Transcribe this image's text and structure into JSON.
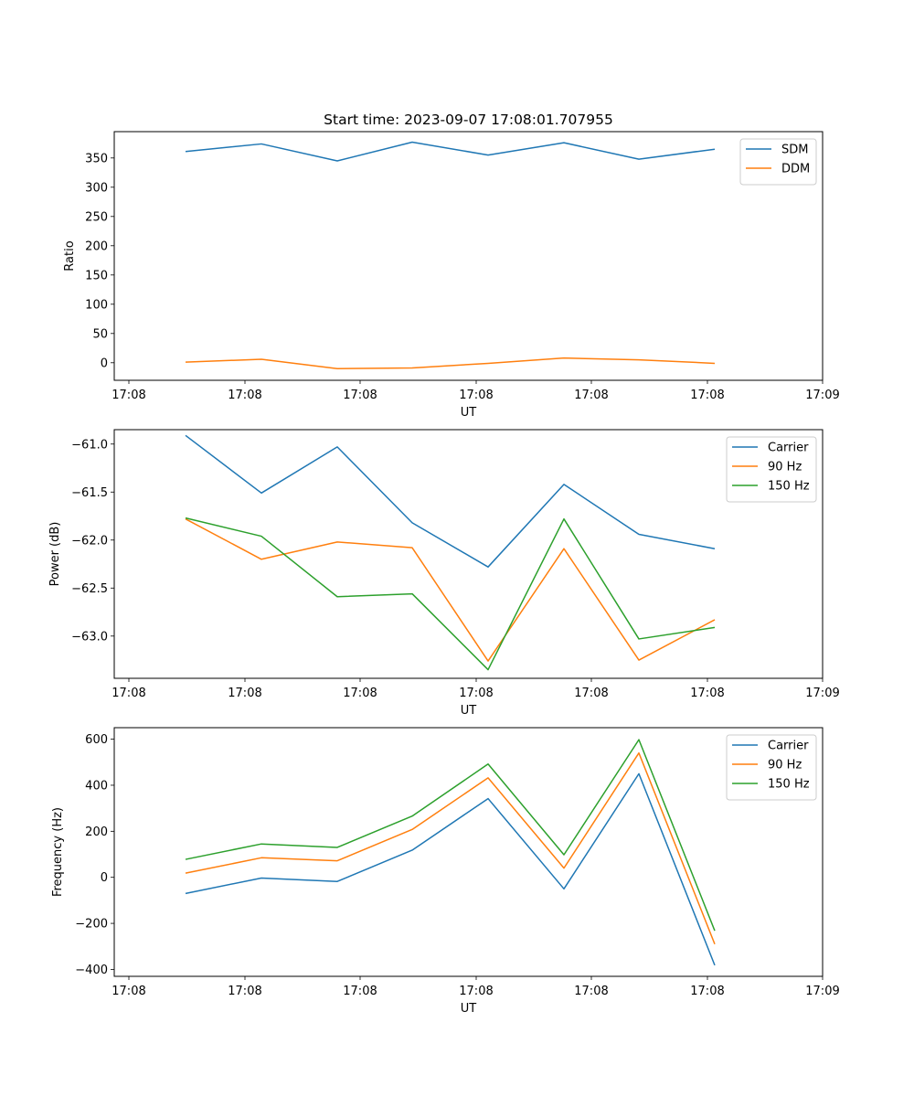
{
  "chart_data": [
    {
      "type": "line",
      "title": "Start time: 2023-09-07 17:08:01.707955",
      "xlabel": "UT",
      "ylabel": "Ratio",
      "x_ticks": [
        "17:08",
        "17:08",
        "17:08",
        "17:08",
        "17:08",
        "17:08",
        "17:09"
      ],
      "y_ticks": [
        0,
        50,
        100,
        150,
        200,
        250,
        300,
        350
      ],
      "ylim": [
        -30,
        395
      ],
      "legend": "top-right",
      "series": [
        {
          "name": "SDM",
          "color": "#1f77b4",
          "values": [
            361,
            374,
            345,
            377,
            355,
            376,
            348,
            365
          ]
        },
        {
          "name": "DDM",
          "color": "#ff7f0e",
          "values": [
            1,
            6,
            -10,
            -9,
            -1,
            8,
            5,
            -1
          ]
        }
      ]
    },
    {
      "type": "line",
      "title": "",
      "xlabel": "UT",
      "ylabel": "Power (dB)",
      "x_ticks": [
        "17:08",
        "17:08",
        "17:08",
        "17:08",
        "17:08",
        "17:08",
        "17:09"
      ],
      "y_ticks": [
        -61.0,
        -61.5,
        -62.0,
        -62.5,
        -63.0
      ],
      "ylim": [
        -63.44,
        -60.85
      ],
      "legend": "top-right",
      "series": [
        {
          "name": "Carrier",
          "color": "#1f77b4",
          "values": [
            -60.91,
            -61.51,
            -61.03,
            -61.82,
            -62.28,
            -61.42,
            -61.94,
            -62.09
          ]
        },
        {
          "name": "90 Hz",
          "color": "#ff7f0e",
          "values": [
            -61.78,
            -62.2,
            -62.02,
            -62.08,
            -63.26,
            -62.09,
            -63.25,
            -62.83
          ]
        },
        {
          "name": "150 Hz",
          "color": "#2ca02c",
          "values": [
            -61.77,
            -61.96,
            -62.59,
            -62.56,
            -63.35,
            -61.78,
            -63.03,
            -62.91
          ]
        }
      ]
    },
    {
      "type": "line",
      "title": "",
      "xlabel": "UT",
      "ylabel": "Frequency (Hz)",
      "x_ticks": [
        "17:08",
        "17:08",
        "17:08",
        "17:08",
        "17:08",
        "17:08",
        "17:09"
      ],
      "y_ticks": [
        -400,
        -200,
        0,
        200,
        400,
        600
      ],
      "ylim": [
        -430,
        650
      ],
      "legend": "top-right",
      "series": [
        {
          "name": "Carrier",
          "color": "#1f77b4",
          "values": [
            -70,
            -3,
            -18,
            118,
            342,
            -50,
            450,
            -382
          ]
        },
        {
          "name": "90 Hz",
          "color": "#ff7f0e",
          "values": [
            18,
            85,
            72,
            208,
            432,
            40,
            540,
            -290
          ]
        },
        {
          "name": "150 Hz",
          "color": "#2ca02c",
          "values": [
            78,
            145,
            130,
            266,
            492,
            98,
            598,
            -232
          ]
        }
      ]
    }
  ]
}
